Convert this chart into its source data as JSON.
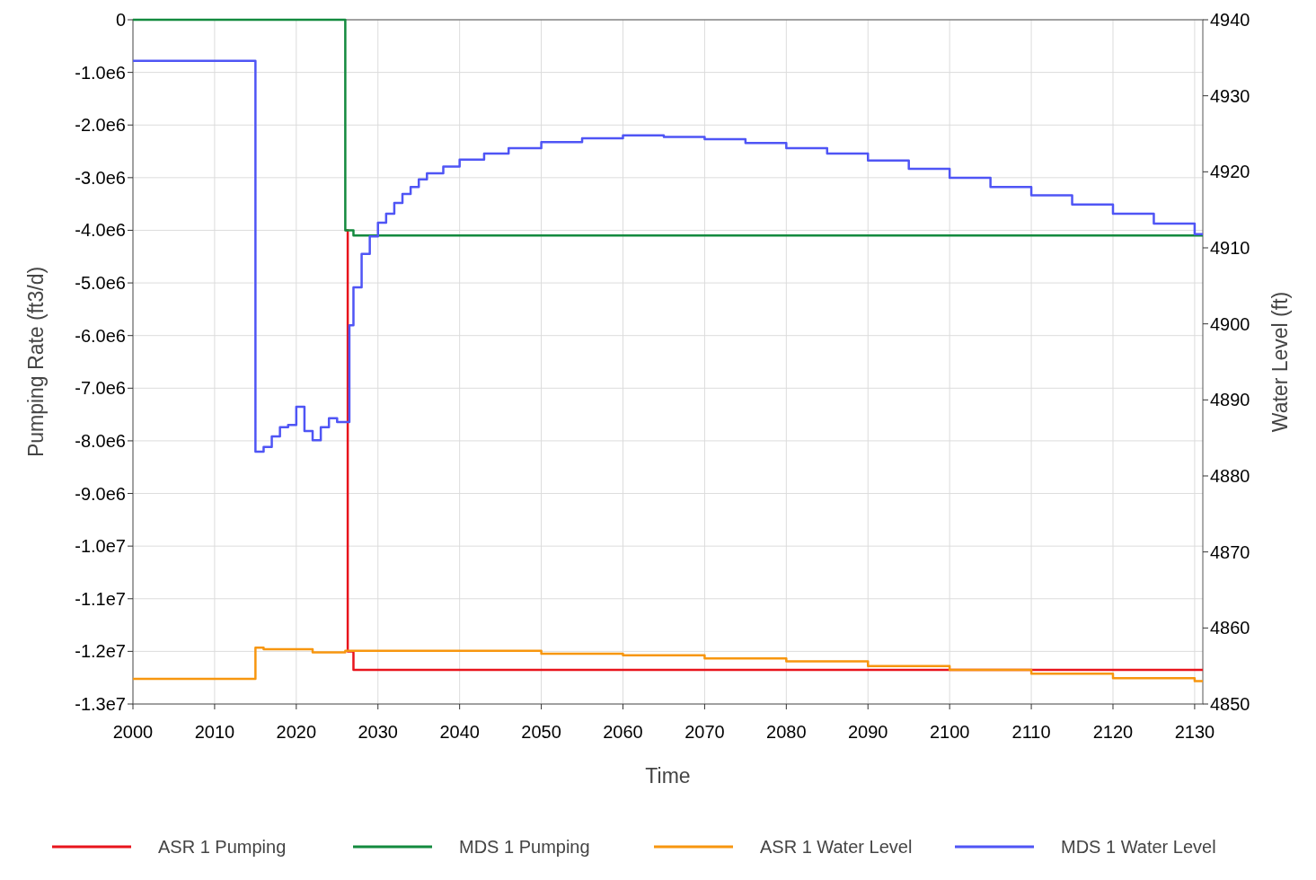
{
  "chart_data": {
    "type": "step",
    "xlabel": "Time",
    "ylabel": "Pumping Rate (ft3/d)",
    "y2label": "Water Level (ft)",
    "xlim": [
      2000,
      2131
    ],
    "xticks": [
      2000,
      2010,
      2020,
      2030,
      2040,
      2050,
      2060,
      2070,
      2080,
      2090,
      2100,
      2110,
      2120,
      2130
    ],
    "ylim": [
      -13000000,
      0
    ],
    "yticks": [
      {
        "value": 0,
        "label": "0"
      },
      {
        "value": -1000000,
        "label": "-1.0e6"
      },
      {
        "value": -2000000,
        "label": "-2.0e6"
      },
      {
        "value": -3000000,
        "label": "-3.0e6"
      },
      {
        "value": -4000000,
        "label": "-4.0e6"
      },
      {
        "value": -5000000,
        "label": "-5.0e6"
      },
      {
        "value": -6000000,
        "label": "-6.0e6"
      },
      {
        "value": -7000000,
        "label": "-7.0e6"
      },
      {
        "value": -8000000,
        "label": "-8.0e6"
      },
      {
        "value": -9000000,
        "label": "-9.0e6"
      },
      {
        "value": -10000000,
        "label": "-1.0e7"
      },
      {
        "value": -11000000,
        "label": "-1.1e7"
      },
      {
        "value": -12000000,
        "label": "-1.2e7"
      },
      {
        "value": -13000000,
        "label": "-1.3e7"
      }
    ],
    "y2lim": [
      4850,
      4940
    ],
    "y2ticks": [
      4850,
      4860,
      4870,
      4880,
      4890,
      4900,
      4910,
      4920,
      4930,
      4940
    ],
    "grid": true,
    "legend": "bottom",
    "series": [
      {
        "name": "ASR 1 Pumping",
        "color": "#e8141c",
        "x": [
          2026,
          2026.3,
          2027,
          2131
        ],
        "values": [
          -4000000,
          -12000000,
          -12350000,
          -12350000
        ]
      },
      {
        "name": "MDS 1 Pumping",
        "color": "#138a3e",
        "x": [
          2000,
          2026,
          2027,
          2131
        ],
        "values": [
          0,
          -4000000,
          -4100000,
          -4100000
        ]
      },
      {
        "name": "ASR 1 Water Level",
        "color": "#f7960f",
        "axis": "y2",
        "x": [
          2000,
          2015,
          2016,
          2022,
          2026,
          2040,
          2050,
          2060,
          2070,
          2080,
          2090,
          2100,
          2110,
          2120,
          2130,
          2131
        ],
        "values": [
          4853.3,
          4857.4,
          4857.2,
          4856.8,
          4857,
          4857,
          4856.6,
          4856.4,
          4856,
          4855.6,
          4855,
          4854.5,
          4854,
          4853.4,
          4853,
          4853
        ]
      },
      {
        "name": "MDS 1 Water Level",
        "color": "#4f55f5",
        "axis": "y2",
        "x": [
          2000,
          2015,
          2016,
          2017,
          2018,
          2019,
          2020,
          2021,
          2022,
          2023,
          2024,
          2025,
          2026.5,
          2027,
          2028,
          2029,
          2030,
          2031,
          2032,
          2033,
          2034,
          2035,
          2036,
          2038,
          2040,
          2043,
          2046,
          2050,
          2055,
          2060,
          2065,
          2070,
          2075,
          2080,
          2085,
          2090,
          2095,
          2100,
          2105,
          2110,
          2115,
          2120,
          2125,
          2130,
          2131
        ],
        "values": [
          4934.6,
          4883.2,
          4883.8,
          4885.2,
          4886.4,
          4886.7,
          4889.1,
          4885.9,
          4884.7,
          4886.4,
          4887.6,
          4887.1,
          4899.8,
          4904.8,
          4909.2,
          4911.5,
          4913.3,
          4914.5,
          4915.9,
          4917.1,
          4918,
          4919,
          4919.8,
          4920.7,
          4921.6,
          4922.4,
          4923.1,
          4923.9,
          4924.4,
          4924.8,
          4924.6,
          4924.3,
          4923.8,
          4923.1,
          4922.4,
          4921.5,
          4920.4,
          4919.2,
          4918,
          4916.9,
          4915.7,
          4914.5,
          4913.2,
          4911.8,
          4911.8
        ]
      }
    ]
  }
}
